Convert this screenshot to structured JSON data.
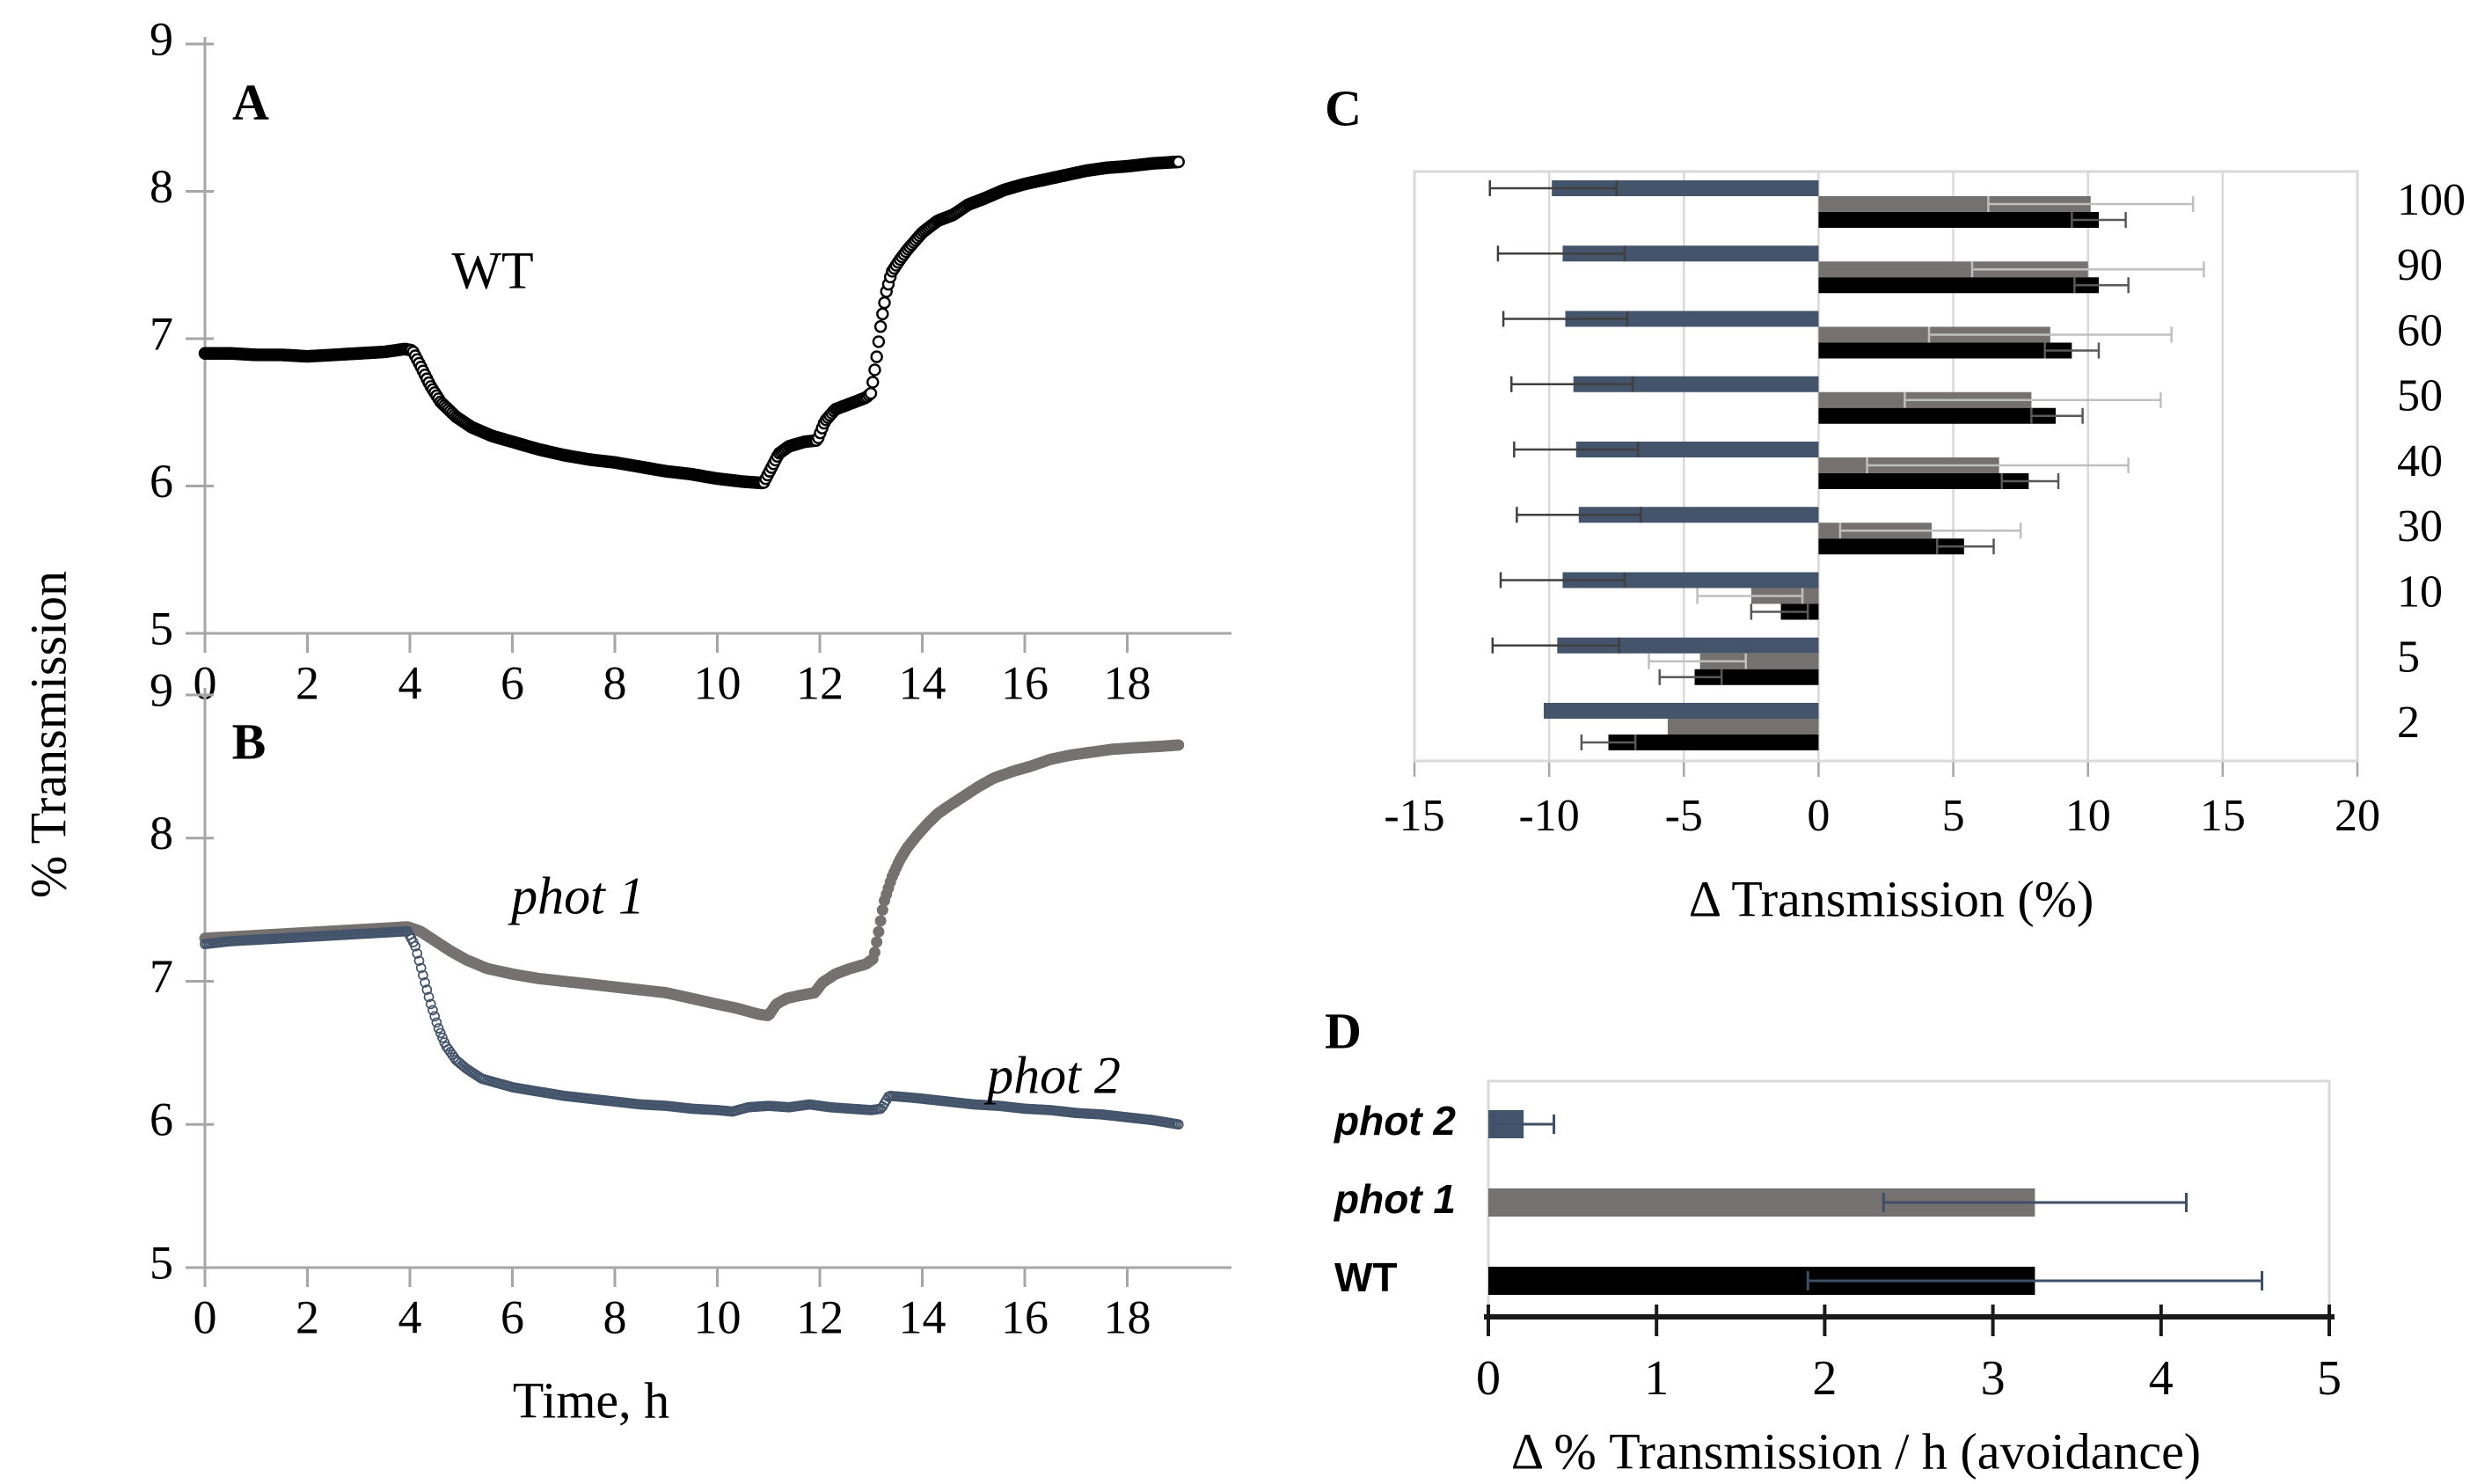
{
  "labels": {
    "panel_a": "A",
    "panel_b": "B",
    "panel_c": "C",
    "panel_d": "D",
    "wt_annotation": "WT",
    "phot1_annotation": "phot 1",
    "phot2_annotation": "phot 2",
    "y_axis_title": "% Transmission",
    "time_axis_title": "Time, h"
  },
  "colors": {
    "black_series": "#000000",
    "gray_series": "#767171",
    "slate_series": "#44546A",
    "err_dark": "#404040",
    "err_light": "#BFBFBF",
    "err_mid": "#595959",
    "err_slate": "#3E4E66",
    "frame": "#D9D9D9",
    "axis_gray": "#A6A6A6",
    "axis_black": "#1A1A1A"
  },
  "chart_data": [
    {
      "panel": "A",
      "type": "line",
      "xlabel": "Time, h",
      "ylabel": "% Transmission",
      "xlim": [
        0,
        20
      ],
      "xticks": [
        0,
        2,
        4,
        6,
        8,
        10,
        12,
        14,
        16,
        18
      ],
      "ylim": [
        5,
        9
      ],
      "yticks": [
        9,
        8,
        7,
        6,
        5
      ],
      "grid": false,
      "series": [
        {
          "name": "WT",
          "marker": "open-circle",
          "color": "#000000",
          "points": [
            [
              0,
              6.9
            ],
            [
              0.5,
              6.9
            ],
            [
              1,
              6.89
            ],
            [
              1.5,
              6.89
            ],
            [
              2,
              6.88
            ],
            [
              2.5,
              6.89
            ],
            [
              3,
              6.9
            ],
            [
              3.5,
              6.91
            ],
            [
              3.9,
              6.93
            ],
            [
              4.05,
              6.92
            ],
            [
              4.2,
              6.82
            ],
            [
              4.4,
              6.68
            ],
            [
              4.6,
              6.57
            ],
            [
              4.9,
              6.47
            ],
            [
              5.2,
              6.4
            ],
            [
              5.6,
              6.34
            ],
            [
              6.0,
              6.3
            ],
            [
              6.5,
              6.25
            ],
            [
              7.0,
              6.21
            ],
            [
              7.5,
              6.18
            ],
            [
              8.0,
              6.16
            ],
            [
              8.5,
              6.13
            ],
            [
              9.0,
              6.1
            ],
            [
              9.5,
              6.08
            ],
            [
              10.0,
              6.05
            ],
            [
              10.5,
              6.03
            ],
            [
              10.9,
              6.02
            ],
            [
              11.05,
              6.12
            ],
            [
              11.2,
              6.22
            ],
            [
              11.4,
              6.27
            ],
            [
              11.7,
              6.3
            ],
            [
              11.95,
              6.31
            ],
            [
              12.1,
              6.44
            ],
            [
              12.3,
              6.52
            ],
            [
              12.6,
              6.56
            ],
            [
              12.9,
              6.6
            ],
            [
              13.0,
              6.63
            ],
            [
              13.1,
              6.85
            ],
            [
              13.2,
              7.12
            ],
            [
              13.3,
              7.32
            ],
            [
              13.4,
              7.45
            ],
            [
              13.55,
              7.53
            ],
            [
              13.7,
              7.6
            ],
            [
              14.0,
              7.72
            ],
            [
              14.3,
              7.8
            ],
            [
              14.6,
              7.84
            ],
            [
              14.9,
              7.91
            ],
            [
              15.2,
              7.95
            ],
            [
              15.6,
              8.01
            ],
            [
              16.0,
              8.05
            ],
            [
              16.4,
              8.08
            ],
            [
              16.8,
              8.11
            ],
            [
              17.2,
              8.14
            ],
            [
              17.6,
              8.16
            ],
            [
              18.0,
              8.17
            ],
            [
              18.5,
              8.19
            ],
            [
              19.0,
              8.2
            ]
          ]
        }
      ]
    },
    {
      "panel": "B",
      "type": "line",
      "xlabel": "Time, h",
      "ylabel": "% Transmission",
      "xlim": [
        0,
        20
      ],
      "xticks": [
        0,
        2,
        4,
        6,
        8,
        10,
        12,
        14,
        16,
        18
      ],
      "ylim": [
        5,
        9
      ],
      "yticks": [
        9,
        8,
        7,
        6,
        5
      ],
      "grid": false,
      "series": [
        {
          "name": "phot 1",
          "marker": "filled-circle",
          "color": "#767171",
          "points": [
            [
              0,
              7.3
            ],
            [
              0.5,
              7.31
            ],
            [
              1,
              7.32
            ],
            [
              1.5,
              7.33
            ],
            [
              2,
              7.34
            ],
            [
              2.5,
              7.35
            ],
            [
              3,
              7.36
            ],
            [
              3.5,
              7.37
            ],
            [
              3.95,
              7.38
            ],
            [
              4.2,
              7.35
            ],
            [
              4.5,
              7.28
            ],
            [
              4.8,
              7.21
            ],
            [
              5.1,
              7.15
            ],
            [
              5.5,
              7.09
            ],
            [
              6.0,
              7.05
            ],
            [
              6.5,
              7.02
            ],
            [
              7.0,
              7.0
            ],
            [
              7.5,
              6.98
            ],
            [
              8.0,
              6.96
            ],
            [
              8.5,
              6.94
            ],
            [
              9.0,
              6.92
            ],
            [
              9.5,
              6.88
            ],
            [
              10.0,
              6.84
            ],
            [
              10.4,
              6.81
            ],
            [
              10.8,
              6.77
            ],
            [
              11.0,
              6.76
            ],
            [
              11.15,
              6.84
            ],
            [
              11.35,
              6.88
            ],
            [
              11.6,
              6.9
            ],
            [
              11.9,
              6.92
            ],
            [
              12.05,
              6.99
            ],
            [
              12.3,
              7.05
            ],
            [
              12.6,
              7.09
            ],
            [
              12.9,
              7.12
            ],
            [
              13.05,
              7.16
            ],
            [
              13.15,
              7.35
            ],
            [
              13.25,
              7.55
            ],
            [
              13.4,
              7.72
            ],
            [
              13.55,
              7.84
            ],
            [
              13.7,
              7.93
            ],
            [
              13.9,
              8.02
            ],
            [
              14.1,
              8.1
            ],
            [
              14.3,
              8.17
            ],
            [
              14.5,
              8.22
            ],
            [
              14.8,
              8.29
            ],
            [
              15.1,
              8.36
            ],
            [
              15.4,
              8.42
            ],
            [
              15.8,
              8.47
            ],
            [
              16.1,
              8.5
            ],
            [
              16.5,
              8.55
            ],
            [
              16.9,
              8.58
            ],
            [
              17.3,
              8.6
            ],
            [
              17.7,
              8.62
            ],
            [
              18.1,
              8.63
            ],
            [
              18.6,
              8.64
            ],
            [
              19.0,
              8.65
            ]
          ]
        },
        {
          "name": "phot 2",
          "marker": "open-circle-small",
          "color": "#44546A",
          "points": [
            [
              0,
              7.26
            ],
            [
              0.5,
              7.28
            ],
            [
              1,
              7.29
            ],
            [
              1.5,
              7.3
            ],
            [
              2,
              7.31
            ],
            [
              2.5,
              7.32
            ],
            [
              3,
              7.33
            ],
            [
              3.5,
              7.34
            ],
            [
              3.95,
              7.35
            ],
            [
              4.1,
              7.25
            ],
            [
              4.25,
              7.05
            ],
            [
              4.4,
              6.85
            ],
            [
              4.55,
              6.68
            ],
            [
              4.7,
              6.55
            ],
            [
              4.9,
              6.45
            ],
            [
              5.1,
              6.39
            ],
            [
              5.4,
              6.32
            ],
            [
              5.7,
              6.29
            ],
            [
              6.0,
              6.26
            ],
            [
              6.5,
              6.23
            ],
            [
              7.0,
              6.2
            ],
            [
              7.5,
              6.18
            ],
            [
              8.0,
              6.16
            ],
            [
              8.5,
              6.14
            ],
            [
              9.0,
              6.13
            ],
            [
              9.5,
              6.11
            ],
            [
              10.0,
              6.1
            ],
            [
              10.3,
              6.09
            ],
            [
              10.6,
              6.12
            ],
            [
              11.0,
              6.13
            ],
            [
              11.4,
              6.12
            ],
            [
              11.8,
              6.14
            ],
            [
              12.2,
              6.12
            ],
            [
              12.6,
              6.11
            ],
            [
              13.0,
              6.1
            ],
            [
              13.2,
              6.11
            ],
            [
              13.35,
              6.2
            ],
            [
              13.7,
              6.19
            ],
            [
              14.0,
              6.18
            ],
            [
              14.5,
              6.16
            ],
            [
              15.0,
              6.14
            ],
            [
              15.5,
              6.13
            ],
            [
              16.0,
              6.11
            ],
            [
              16.5,
              6.1
            ],
            [
              17.0,
              6.08
            ],
            [
              17.5,
              6.07
            ],
            [
              18.0,
              6.05
            ],
            [
              18.5,
              6.03
            ],
            [
              19.0,
              6.0
            ]
          ]
        }
      ]
    },
    {
      "panel": "C",
      "type": "bar",
      "orientation": "horizontal",
      "xlabel": "Δ Transmission (%)",
      "xlim": [
        -15,
        20
      ],
      "xticks": [
        -15,
        -10,
        -5,
        0,
        5,
        10,
        15,
        20
      ],
      "grid": true,
      "categories": [
        "100",
        "90",
        "60",
        "50",
        "40",
        "30",
        "10",
        "5",
        "2"
      ],
      "series": [
        {
          "name": "phot 2",
          "color": "#44546A",
          "err_color": "#404040",
          "values": [
            -9.9,
            -9.5,
            -9.4,
            -9.1,
            -9.0,
            -8.9,
            -9.5,
            -9.7,
            -10.2
          ],
          "err_lo": [
            -12.2,
            -11.9,
            -11.7,
            -11.4,
            -11.3,
            -11.2,
            -11.8,
            -12.1,
            null
          ],
          "err_hi": [
            -7.5,
            -7.2,
            -7.1,
            -6.9,
            -6.7,
            -6.6,
            -7.2,
            -7.4,
            null
          ]
        },
        {
          "name": "phot 1",
          "color": "#767171",
          "err_color": "#BFBFBF",
          "values": [
            10.1,
            10.0,
            8.6,
            7.9,
            6.7,
            4.2,
            -2.5,
            -4.4,
            -5.6
          ],
          "err_lo": [
            6.3,
            5.7,
            4.1,
            3.2,
            1.8,
            0.8,
            -4.5,
            -6.3,
            null
          ],
          "err_hi": [
            13.9,
            14.3,
            13.1,
            12.7,
            11.5,
            7.5,
            -0.6,
            -2.7,
            null
          ]
        },
        {
          "name": "WT",
          "color": "#000000",
          "err_color": "#595959",
          "values": [
            10.4,
            10.4,
            9.4,
            8.8,
            7.8,
            5.4,
            -1.4,
            -4.6,
            -7.8
          ],
          "err_lo": [
            9.4,
            9.5,
            8.4,
            7.9,
            6.8,
            4.4,
            -2.5,
            -5.9,
            -8.8
          ],
          "err_hi": [
            11.4,
            11.5,
            10.4,
            9.8,
            8.9,
            6.5,
            -0.4,
            -3.6,
            -6.8
          ]
        }
      ]
    },
    {
      "panel": "D",
      "type": "bar",
      "orientation": "horizontal",
      "xlabel": "Δ % Transmission / h (avoidance)",
      "xlim": [
        0,
        5
      ],
      "xticks": [
        0,
        1,
        2,
        3,
        4,
        5
      ],
      "grid": false,
      "categories": [
        "phot 2",
        "phot 1",
        "WT"
      ],
      "colors": [
        "#44546A",
        "#767171",
        "#000000"
      ],
      "err_color": "#3E4E66",
      "values": [
        0.21,
        3.25,
        3.25
      ],
      "err_lo": [
        0.03,
        2.35,
        1.9
      ],
      "err_hi": [
        0.39,
        4.15,
        4.6
      ]
    }
  ]
}
